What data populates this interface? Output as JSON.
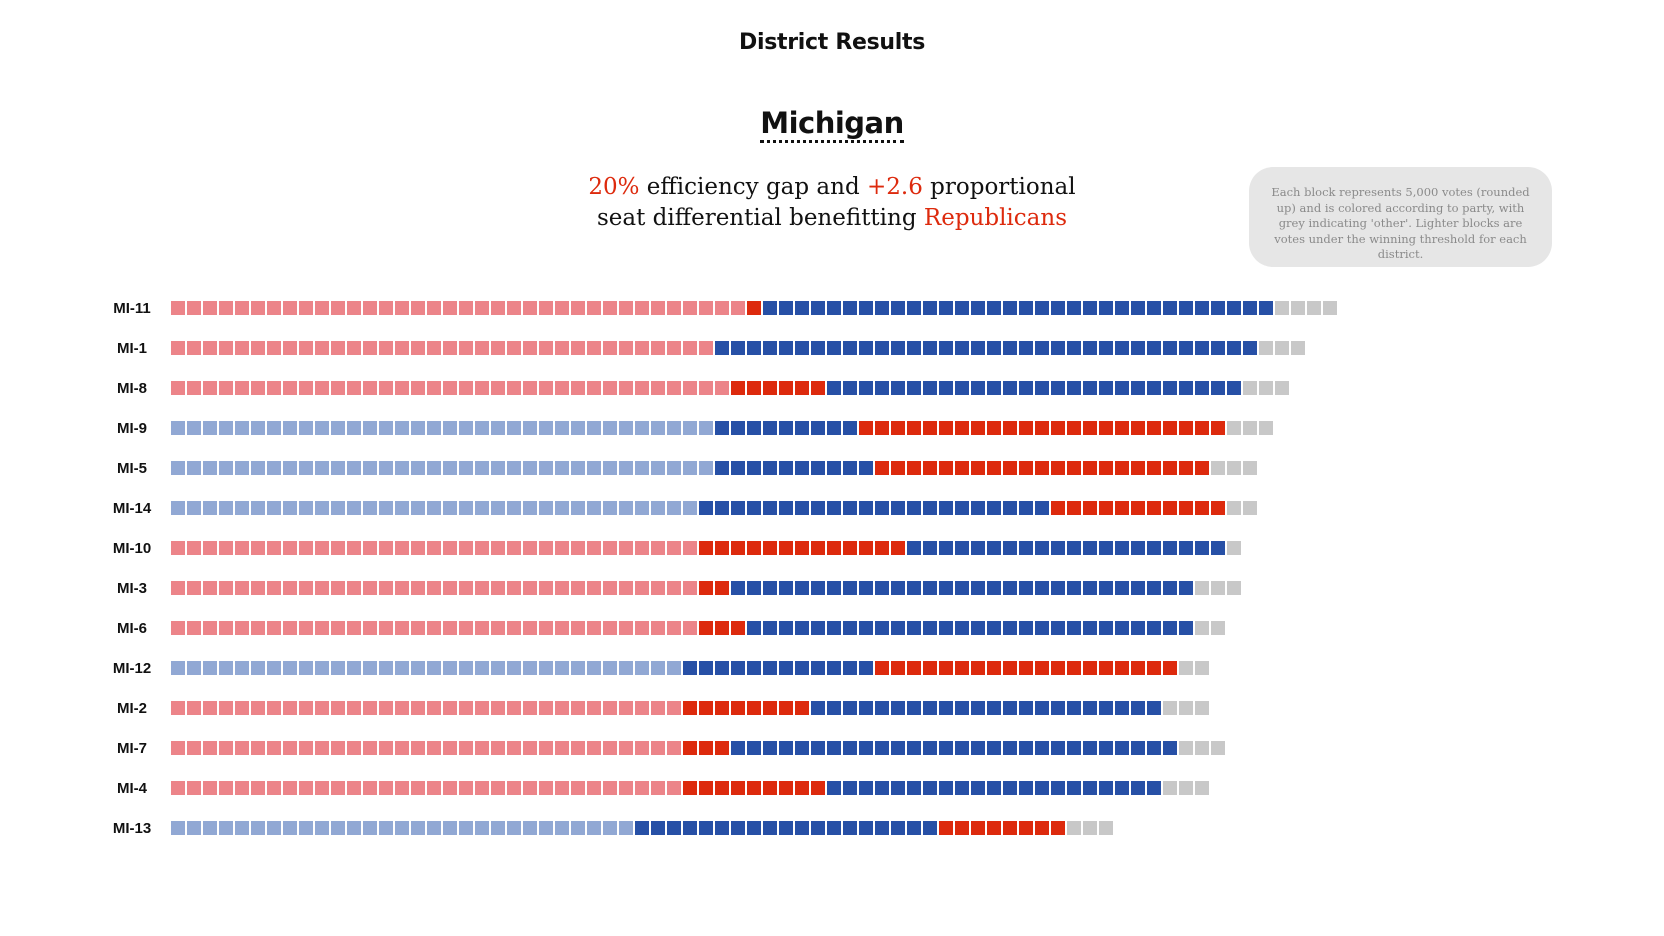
{
  "header": {
    "title": "District Results",
    "state": "Michigan"
  },
  "summary": {
    "efficiency_gap": "20%",
    "text1": " efficiency gap and ",
    "seat_differential": "+2.6",
    "text2": " proportional",
    "text3": "seat differential benefitting ",
    "party": "Republicans"
  },
  "note": "Each block represents 5,000 votes (rounded up) and is colored according to party, with grey indicating 'other'. Lighter blocks are votes under the winning threshold for each district.",
  "colors": {
    "rep_light": "#ec8489",
    "rep": "#dd2a0d",
    "dem_light": "#91a8d4",
    "dem": "#2750a6",
    "other": "#c8c8c8",
    "accent": "#dd2a0d"
  },
  "chart_data": {
    "type": "waffle-bar",
    "title": "District Results",
    "subtitle": "Michigan",
    "unit": "block = 5,000 votes (rounded up)",
    "segment_keys": [
      "wasted_below_threshold",
      "winner_above_threshold_or_loser",
      "third",
      "other"
    ],
    "rows": [
      {
        "district": "MI-11",
        "segments": [
          {
            "party": "rep_light",
            "blocks": 36
          },
          {
            "party": "rep",
            "blocks": 1
          },
          {
            "party": "dem",
            "blocks": 32
          },
          {
            "party": "other",
            "blocks": 4
          }
        ]
      },
      {
        "district": "MI-1",
        "segments": [
          {
            "party": "rep_light",
            "blocks": 34
          },
          {
            "party": "dem",
            "blocks": 34
          },
          {
            "party": "other",
            "blocks": 3
          }
        ]
      },
      {
        "district": "MI-8",
        "segments": [
          {
            "party": "rep_light",
            "blocks": 35
          },
          {
            "party": "rep",
            "blocks": 6
          },
          {
            "party": "dem",
            "blocks": 26
          },
          {
            "party": "other",
            "blocks": 3
          }
        ]
      },
      {
        "district": "MI-9",
        "segments": [
          {
            "party": "dem_light",
            "blocks": 34
          },
          {
            "party": "dem",
            "blocks": 9
          },
          {
            "party": "rep",
            "blocks": 23
          },
          {
            "party": "other",
            "blocks": 3
          }
        ]
      },
      {
        "district": "MI-5",
        "segments": [
          {
            "party": "dem_light",
            "blocks": 34
          },
          {
            "party": "dem",
            "blocks": 10
          },
          {
            "party": "rep",
            "blocks": 21
          },
          {
            "party": "other",
            "blocks": 3
          }
        ]
      },
      {
        "district": "MI-14",
        "segments": [
          {
            "party": "dem_light",
            "blocks": 33
          },
          {
            "party": "dem",
            "blocks": 22
          },
          {
            "party": "rep",
            "blocks": 11
          },
          {
            "party": "other",
            "blocks": 2
          }
        ]
      },
      {
        "district": "MI-10",
        "segments": [
          {
            "party": "rep_light",
            "blocks": 33
          },
          {
            "party": "rep",
            "blocks": 13
          },
          {
            "party": "dem",
            "blocks": 20
          },
          {
            "party": "other",
            "blocks": 1
          }
        ]
      },
      {
        "district": "MI-3",
        "segments": [
          {
            "party": "rep_light",
            "blocks": 33
          },
          {
            "party": "rep",
            "blocks": 2
          },
          {
            "party": "dem",
            "blocks": 29
          },
          {
            "party": "other",
            "blocks": 3
          }
        ]
      },
      {
        "district": "MI-6",
        "segments": [
          {
            "party": "rep_light",
            "blocks": 33
          },
          {
            "party": "rep",
            "blocks": 3
          },
          {
            "party": "dem",
            "blocks": 28
          },
          {
            "party": "other",
            "blocks": 2
          }
        ]
      },
      {
        "district": "MI-12",
        "segments": [
          {
            "party": "dem_light",
            "blocks": 32
          },
          {
            "party": "dem",
            "blocks": 12
          },
          {
            "party": "rep",
            "blocks": 19
          },
          {
            "party": "other",
            "blocks": 2
          }
        ]
      },
      {
        "district": "MI-2",
        "segments": [
          {
            "party": "rep_light",
            "blocks": 32
          },
          {
            "party": "rep",
            "blocks": 8
          },
          {
            "party": "dem",
            "blocks": 22
          },
          {
            "party": "other",
            "blocks": 3
          }
        ]
      },
      {
        "district": "MI-7",
        "segments": [
          {
            "party": "rep_light",
            "blocks": 32
          },
          {
            "party": "rep",
            "blocks": 3
          },
          {
            "party": "dem",
            "blocks": 28
          },
          {
            "party": "other",
            "blocks": 3
          }
        ]
      },
      {
        "district": "MI-4",
        "segments": [
          {
            "party": "rep_light",
            "blocks": 32
          },
          {
            "party": "rep",
            "blocks": 9
          },
          {
            "party": "dem",
            "blocks": 21
          },
          {
            "party": "other",
            "blocks": 3
          }
        ]
      },
      {
        "district": "MI-13",
        "segments": [
          {
            "party": "dem_light",
            "blocks": 29
          },
          {
            "party": "dem",
            "blocks": 19
          },
          {
            "party": "rep",
            "blocks": 8
          },
          {
            "party": "other",
            "blocks": 3
          }
        ]
      }
    ],
    "legend": "none",
    "grid": false
  }
}
